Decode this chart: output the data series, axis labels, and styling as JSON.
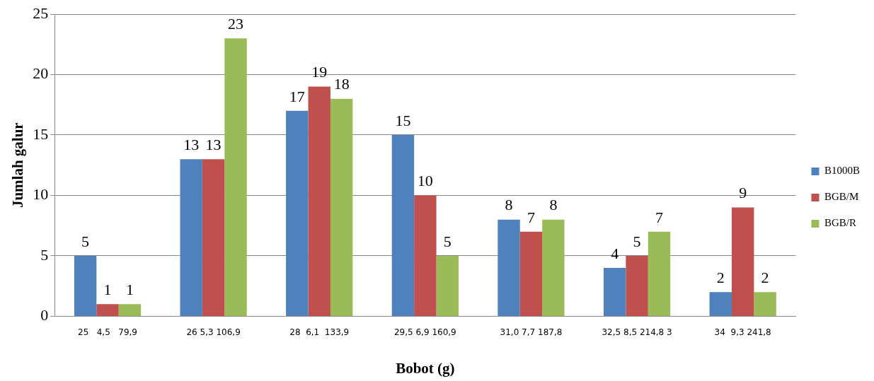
{
  "chart_data": {
    "type": "bar",
    "xlabel": "Bobot (g)",
    "ylabel": "Jumlah galur",
    "categories": [
      "25   4,5   79,9",
      "26 5,3 106,9",
      "28  6,1  133,9",
      "29,5 6,9 160,9",
      "31,0 7,7 187,8",
      "32,5 8,5 214,8 3",
      "34  9,3 241,8"
    ],
    "series": [
      {
        "name": "B1000B",
        "color": "#4f81bd",
        "values": [
          5,
          13,
          17,
          15,
          8,
          4,
          2
        ]
      },
      {
        "name": "BGB/M",
        "color": "#c0504d",
        "values": [
          1,
          13,
          19,
          10,
          7,
          5,
          9
        ]
      },
      {
        "name": "BGB/R",
        "color": "#9bbb59",
        "values": [
          1,
          23,
          18,
          5,
          8,
          7,
          2
        ]
      }
    ],
    "ylim": [
      0,
      25
    ],
    "yticks": [
      0,
      5,
      10,
      15,
      20,
      25
    ],
    "grid": "y",
    "legend": "right",
    "data_labels": true
  }
}
